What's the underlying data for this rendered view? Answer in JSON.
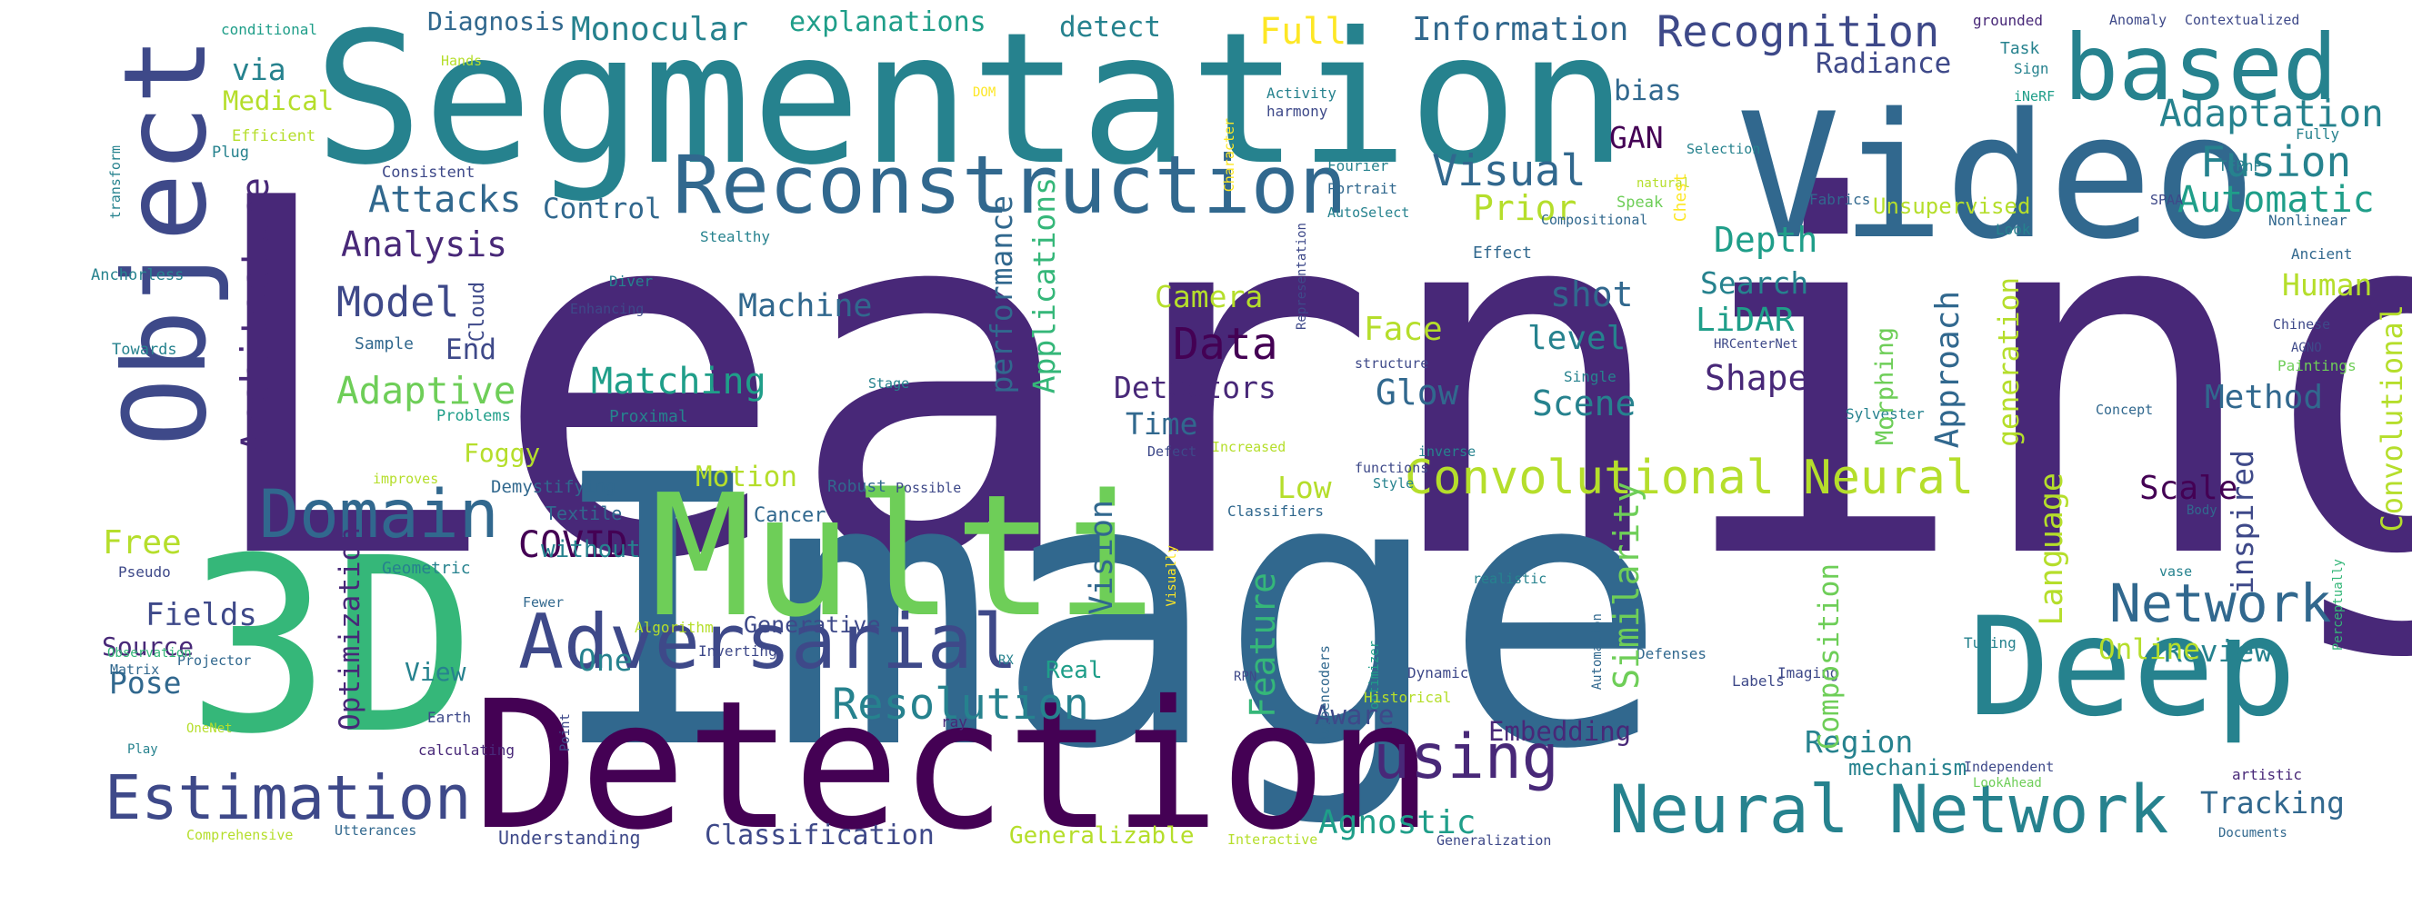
{
  "colors": {
    "background": "#ffffff",
    "palette": [
      "#440154",
      "#482878",
      "#3e4989",
      "#31688e",
      "#26828e",
      "#1f9e89",
      "#35b779",
      "#6ece58",
      "#b5de2b",
      "#fde725"
    ]
  },
  "words": [
    {
      "id": "learning",
      "text": "Learning",
      "color": "#482878"
    },
    {
      "id": "image",
      "text": "Image",
      "color": "#31688e"
    },
    {
      "id": "segmentation",
      "text": "Segmentation",
      "color": "#26828e"
    },
    {
      "id": "detection",
      "text": "Detection",
      "color": "#440154"
    },
    {
      "id": "3d",
      "text": "3D",
      "color": "#35b779"
    },
    {
      "id": "multi",
      "text": "Multi",
      "color": "#6ece58"
    },
    {
      "id": "video",
      "text": "Video",
      "color": "#31688e"
    },
    {
      "id": "object",
      "text": "Object",
      "color": "#3e4989"
    },
    {
      "id": "deep",
      "text": "Deep",
      "color": "#26828e"
    },
    {
      "id": "based",
      "text": "based",
      "color": "#26828e"
    },
    {
      "id": "reconstruction",
      "text": "Reconstruction",
      "color": "#31688e"
    },
    {
      "id": "adversarial",
      "text": "Adversarial",
      "color": "#3e4989"
    },
    {
      "id": "neural-network",
      "text": "Neural Network",
      "color": "#26828e"
    },
    {
      "id": "estimation",
      "text": "Estimation",
      "color": "#3e4989"
    },
    {
      "id": "domain",
      "text": "Domain",
      "color": "#31688e"
    },
    {
      "id": "using",
      "text": "using",
      "color": "#482878"
    },
    {
      "id": "convolutional-neural",
      "text": "Convolutional Neural",
      "color": "#b5de2b"
    },
    {
      "id": "network",
      "text": "Network",
      "color": "#31688e"
    },
    {
      "id": "recognition",
      "text": "Recognition",
      "color": "#3e4989"
    },
    {
      "id": "resolution",
      "text": "Resolution",
      "color": "#26828e"
    },
    {
      "id": "matching",
      "text": "Matching",
      "color": "#1f9e89"
    },
    {
      "id": "model",
      "text": "Model",
      "color": "#3e4989"
    },
    {
      "id": "data",
      "text": "Data",
      "color": "#440154"
    },
    {
      "id": "visual",
      "text": "Visual",
      "color": "#31688e"
    },
    {
      "id": "fusion",
      "text": "Fusion",
      "color": "#26828e"
    },
    {
      "id": "adaptation",
      "text": "Adaptation",
      "color": "#26828e"
    },
    {
      "id": "automatic",
      "text": "Automatic",
      "color": "#1f9e89"
    },
    {
      "id": "attacks",
      "text": "Attacks",
      "color": "#31688e"
    },
    {
      "id": "analysis",
      "text": "Analysis",
      "color": "#482878"
    },
    {
      "id": "adaptive",
      "text": "Adaptive",
      "color": "#6ece58"
    },
    {
      "id": "information",
      "text": "Information",
      "color": "#31688e"
    },
    {
      "id": "monocular",
      "text": "Monocular",
      "color": "#26828e"
    },
    {
      "id": "explanations",
      "text": "explanations",
      "color": "#1f9e89"
    },
    {
      "id": "detect",
      "text": "detect",
      "color": "#26828e"
    },
    {
      "id": "full",
      "text": "Full",
      "color": "#fde725"
    },
    {
      "id": "radiance",
      "text": "Radiance",
      "color": "#3e4989"
    },
    {
      "id": "diagnosis",
      "text": "Diagnosis",
      "color": "#31688e"
    },
    {
      "id": "via",
      "text": "via",
      "color": "#26828e"
    },
    {
      "id": "medical",
      "text": "Medical",
      "color": "#b5de2b"
    },
    {
      "id": "depth",
      "text": "Depth",
      "color": "#1f9e89"
    },
    {
      "id": "search",
      "text": "Search",
      "color": "#26828e"
    },
    {
      "id": "lidar",
      "text": "LiDAR",
      "color": "#1f9e89"
    },
    {
      "id": "human",
      "text": "Human",
      "color": "#b5de2b"
    },
    {
      "id": "shot",
      "text": "shot",
      "color": "#31688e"
    },
    {
      "id": "level",
      "text": "level",
      "color": "#26828e"
    },
    {
      "id": "camera",
      "text": "Camera",
      "color": "#b5de2b"
    },
    {
      "id": "face",
      "text": "Face",
      "color": "#b5de2b"
    },
    {
      "id": "machine",
      "text": "Machine",
      "color": "#31688e"
    },
    {
      "id": "end",
      "text": "End",
      "color": "#3e4989"
    },
    {
      "id": "control",
      "text": "Control",
      "color": "#31688e"
    },
    {
      "id": "prior",
      "text": "Prior",
      "color": "#b5de2b"
    },
    {
      "id": "gan",
      "text": "GAN",
      "color": "#440154"
    },
    {
      "id": "bias",
      "text": "bias",
      "color": "#31688e"
    },
    {
      "id": "detectors",
      "text": "Detectors",
      "color": "#482878"
    },
    {
      "id": "glow",
      "text": "Glow",
      "color": "#31688e"
    },
    {
      "id": "shape",
      "text": "Shape",
      "color": "#482878"
    },
    {
      "id": "scene",
      "text": "Scene",
      "color": "#26828e"
    },
    {
      "id": "time",
      "text": "Time",
      "color": "#31688e"
    },
    {
      "id": "method",
      "text": "Method",
      "color": "#31688e"
    },
    {
      "id": "free",
      "text": "Free",
      "color": "#b5de2b"
    },
    {
      "id": "foggy",
      "text": "Foggy",
      "color": "#b5de2b"
    },
    {
      "id": "motion",
      "text": "Motion",
      "color": "#b5de2b"
    },
    {
      "id": "low",
      "text": "Low",
      "color": "#b5de2b"
    },
    {
      "id": "scale",
      "text": "Scale",
      "color": "#440154"
    },
    {
      "id": "covid",
      "text": "COVID",
      "color": "#440154"
    },
    {
      "id": "fields",
      "text": "Fields",
      "color": "#3e4989"
    },
    {
      "id": "source",
      "text": "Source",
      "color": "#482878"
    },
    {
      "id": "pose",
      "text": "Pose",
      "color": "#31688e"
    },
    {
      "id": "view",
      "text": "View",
      "color": "#26828e"
    },
    {
      "id": "one",
      "text": "One",
      "color": "#26828e"
    },
    {
      "id": "generative",
      "text": "Generative",
      "color": "#3e4989"
    },
    {
      "id": "review",
      "text": "Review",
      "color": "#26828e"
    },
    {
      "id": "online",
      "text": "Online",
      "color": "#b5de2b"
    },
    {
      "id": "aware",
      "text": "Aware",
      "color": "#3e4989"
    },
    {
      "id": "embedding",
      "text": "Embedding",
      "color": "#482878"
    },
    {
      "id": "region",
      "text": "Region",
      "color": "#26828e"
    },
    {
      "id": "agnostic",
      "text": "Agnostic",
      "color": "#1f9e89"
    },
    {
      "id": "tracking",
      "text": "Tracking",
      "color": "#31688e"
    },
    {
      "id": "classification",
      "text": "Classification",
      "color": "#3e4989"
    },
    {
      "id": "generalizable",
      "text": "Generalizable",
      "color": "#b5de2b"
    },
    {
      "id": "mechanism",
      "text": "mechanism",
      "color": "#26828e"
    },
    {
      "id": "real",
      "text": "Real",
      "color": "#1f9e89"
    },
    {
      "id": "without",
      "text": "without",
      "color": "#26828e"
    },
    {
      "id": "understanding",
      "text": "Understanding",
      "color": "#3e4989"
    },
    {
      "id": "cancer",
      "text": "Cancer",
      "color": "#31688e"
    },
    {
      "id": "demystifying",
      "text": "Demystifying",
      "color": "#31688e"
    },
    {
      "id": "textile",
      "text": "Textile",
      "color": "#31688e"
    },
    {
      "id": "geometric",
      "text": "Geometric",
      "color": "#26828e"
    },
    {
      "id": "robust",
      "text": "Robust",
      "color": "#31688e"
    },
    {
      "id": "proximal",
      "text": "Proximal",
      "color": "#26828e"
    },
    {
      "id": "problems",
      "text": "Problems",
      "color": "#1f9e89"
    },
    {
      "id": "sample",
      "text": "Sample",
      "color": "#31688e"
    },
    {
      "id": "towards",
      "text": "Towards",
      "color": "#26828e"
    },
    {
      "id": "anchorless",
      "text": "Anchorless",
      "color": "#26828e"
    },
    {
      "id": "consistent",
      "text": "Consistent",
      "color": "#3e4989"
    },
    {
      "id": "efficient",
      "text": "Efficient",
      "color": "#b5de2b"
    },
    {
      "id": "plug",
      "text": "Plug",
      "color": "#26828e"
    },
    {
      "id": "hands",
      "text": "Hands",
      "color": "#b5de2b"
    },
    {
      "id": "conditional",
      "text": "conditional",
      "color": "#1f9e89"
    },
    {
      "id": "stealthy",
      "text": "Stealthy",
      "color": "#26828e"
    },
    {
      "id": "diver",
      "text": "Diver",
      "color": "#26828e"
    },
    {
      "id": "enhancing",
      "text": "Enhancing",
      "color": "#3e4989"
    },
    {
      "id": "stage",
      "text": "Stage",
      "color": "#26828e"
    },
    {
      "id": "possible",
      "text": "Possible",
      "color": "#3e4989"
    },
    {
      "id": "activity",
      "text": "Activity",
      "color": "#26828e"
    },
    {
      "id": "harmony",
      "text": "harmony",
      "color": "#3e4989"
    },
    {
      "id": "fourier",
      "text": "Fourier",
      "color": "#26828e"
    },
    {
      "id": "portrait",
      "text": "Portrait",
      "color": "#31688e"
    },
    {
      "id": "autoselect",
      "text": "AutoSelect",
      "color": "#26828e"
    },
    {
      "id": "effect",
      "text": "Effect",
      "color": "#31688e"
    },
    {
      "id": "compositional",
      "text": "Compositional",
      "color": "#31688e"
    },
    {
      "id": "speak",
      "text": "Speak",
      "color": "#6ece58"
    },
    {
      "id": "natural",
      "text": "natural",
      "color": "#b5de2b"
    },
    {
      "id": "fabrics",
      "text": "Fabrics",
      "color": "#31688e"
    },
    {
      "id": "unsupervised",
      "text": "Unsupervised",
      "color": "#b5de2b"
    },
    {
      "id": "selection",
      "text": "Selection",
      "color": "#26828e"
    },
    {
      "id": "task",
      "text": "Task",
      "color": "#26828e"
    },
    {
      "id": "sign",
      "text": "Sign",
      "color": "#26828e"
    },
    {
      "id": "inerf",
      "text": "iNeRF",
      "color": "#1f9e89"
    },
    {
      "id": "grounded",
      "text": "grounded",
      "color": "#482878"
    },
    {
      "id": "anomaly",
      "text": "Anomaly",
      "color": "#3e4989"
    },
    {
      "id": "contextualized",
      "text": "Contextualized",
      "color": "#3e4989"
    },
    {
      "id": "fully",
      "text": "Fully",
      "color": "#26828e"
    },
    {
      "id": "tfpnp",
      "text": "TFPnP",
      "color": "#26828e"
    },
    {
      "id": "spaa",
      "text": "SPAA",
      "color": "#3e4989"
    },
    {
      "id": "nonlinear",
      "text": "Nonlinear",
      "color": "#31688e"
    },
    {
      "id": "look",
      "text": "Look",
      "color": "#26828e"
    },
    {
      "id": "ancient",
      "text": "Ancient",
      "color": "#31688e"
    },
    {
      "id": "chinese",
      "text": "Chinese",
      "color": "#3e4989"
    },
    {
      "id": "agno",
      "text": "AGNO",
      "color": "#3e4989"
    },
    {
      "id": "paintings",
      "text": "Paintings",
      "color": "#6ece58"
    },
    {
      "id": "concept",
      "text": "Concept",
      "color": "#31688e"
    },
    {
      "id": "body",
      "text": "Body",
      "color": "#31688e"
    },
    {
      "id": "sylvester",
      "text": "Sylvester",
      "color": "#26828e"
    },
    {
      "id": "single",
      "text": "Single",
      "color": "#26828e"
    },
    {
      "id": "hrcenternet",
      "text": "HRCenterNet",
      "color": "#3e4989"
    },
    {
      "id": "structure",
      "text": "structure",
      "color": "#3e4989"
    },
    {
      "id": "functions",
      "text": "functions",
      "color": "#3e4989"
    },
    {
      "id": "inverse",
      "text": "inverse",
      "color": "#26828e"
    },
    {
      "id": "increased",
      "text": "Increased",
      "color": "#b5de2b"
    },
    {
      "id": "defect",
      "text": "Defect",
      "color": "#3e4989"
    },
    {
      "id": "style",
      "text": "Style",
      "color": "#26828e"
    },
    {
      "id": "classifiers",
      "text": "Classifiers",
      "color": "#31688e"
    },
    {
      "id": "realistic",
      "text": "realistic",
      "color": "#26828e"
    },
    {
      "id": "vase",
      "text": "vase",
      "color": "#26828e"
    },
    {
      "id": "autoencoders",
      "text": "Autoencoders",
      "color": "#31688e"
    },
    {
      "id": "optimizer",
      "text": "optimizer",
      "color": "#1f9e89"
    },
    {
      "id": "tuning",
      "text": "Tuning",
      "color": "#26828e"
    },
    {
      "id": "defenses",
      "text": "Defenses",
      "color": "#31688e"
    },
    {
      "id": "rx",
      "text": "RX",
      "color": "#26828e"
    },
    {
      "id": "rpn",
      "text": "RPN",
      "color": "#3e4989"
    },
    {
      "id": "dynamic",
      "text": "Dynamic",
      "color": "#3e4989"
    },
    {
      "id": "historical",
      "text": "Historical",
      "color": "#b5de2b"
    },
    {
      "id": "imaging",
      "text": "Imaging",
      "color": "#3e4989"
    },
    {
      "id": "labels",
      "text": "Labels",
      "color": "#3e4989"
    },
    {
      "id": "independent",
      "text": "Independent",
      "color": "#3e4989"
    },
    {
      "id": "lookahead",
      "text": "LookAhead",
      "color": "#6ece58"
    },
    {
      "id": "artistic",
      "text": "artistic",
      "color": "#482878"
    },
    {
      "id": "documents",
      "text": "Documents",
      "color": "#31688e"
    },
    {
      "id": "generalization",
      "text": "Generalization",
      "color": "#3e4989"
    },
    {
      "id": "interactive",
      "text": "Interactive",
      "color": "#b5de2b"
    },
    {
      "id": "earth",
      "text": "Earth",
      "color": "#3e4989"
    },
    {
      "id": "calculating",
      "text": "calculating",
      "color": "#482878"
    },
    {
      "id": "ray",
      "text": "ray",
      "color": "#482878"
    },
    {
      "id": "algorithm",
      "text": "Algorithm",
      "color": "#b5de2b"
    },
    {
      "id": "inverting",
      "text": "Inverting",
      "color": "#3e4989"
    },
    {
      "id": "utterances",
      "text": "Utterances",
      "color": "#31688e"
    },
    {
      "id": "comprehensive",
      "text": "Comprehensive",
      "color": "#b5de2b"
    },
    {
      "id": "onenet",
      "text": "OneNet",
      "color": "#b5de2b"
    },
    {
      "id": "play",
      "text": "Play",
      "color": "#26828e"
    },
    {
      "id": "matrix",
      "text": "Matrix",
      "color": "#31688e"
    },
    {
      "id": "projector",
      "text": "Projector",
      "color": "#31688e"
    },
    {
      "id": "observation",
      "text": "Observation",
      "color": "#35b779"
    },
    {
      "id": "pseudo",
      "text": "Pseudo",
      "color": "#3e4989"
    },
    {
      "id": "fewer",
      "text": "Fewer",
      "color": "#31688e"
    },
    {
      "id": "improves",
      "text": "improves",
      "color": "#b5de2b"
    },
    {
      "id": "dom",
      "text": "DOM",
      "color": "#fde725"
    },
    {
      "id": "transform",
      "text": "transform",
      "color": "#26828e"
    },
    {
      "id": "architecture",
      "text": "Architecture",
      "color": "#482878"
    },
    {
      "id": "cloud",
      "text": "Cloud",
      "color": "#3e4989"
    },
    {
      "id": "optimization",
      "text": "Optimization",
      "color": "#482878"
    },
    {
      "id": "vision",
      "text": "Vision",
      "color": "#31688e"
    },
    {
      "id": "performance",
      "text": "performance",
      "color": "#31688e"
    },
    {
      "id": "applications",
      "text": "Applications",
      "color": "#35b779"
    },
    {
      "id": "feature",
      "text": "Feature",
      "color": "#35b779"
    },
    {
      "id": "similarity",
      "text": "Similarity",
      "color": "#6ece58"
    },
    {
      "id": "approach",
      "text": "Approach",
      "color": "#31688e"
    },
    {
      "id": "generation",
      "text": "generation",
      "color": "#b5de2b"
    },
    {
      "id": "morphing",
      "text": "Morphing",
      "color": "#6ece58"
    },
    {
      "id": "language",
      "text": "Language",
      "color": "#b5de2b"
    },
    {
      "id": "composition",
      "text": "Composition",
      "color": "#6ece58"
    },
    {
      "id": "inspired",
      "text": "inspired",
      "color": "#3e4989"
    },
    {
      "id": "convolutional",
      "text": "Convolutional",
      "color": "#b5de2b"
    },
    {
      "id": "character",
      "text": "Character",
      "color": "#fde725"
    },
    {
      "id": "chest",
      "text": "Chest",
      "color": "#fde725"
    },
    {
      "id": "representation",
      "text": "Representation",
      "color": "#3e4989"
    },
    {
      "id": "point",
      "text": "Point",
      "color": "#3e4989"
    },
    {
      "id": "visually",
      "text": "Visually",
      "color": "#fde725"
    },
    {
      "id": "automation",
      "text": "Automation",
      "color": "#31688e"
    },
    {
      "id": "perceptually",
      "text": "Perceptually",
      "color": "#35b779"
    }
  ]
}
